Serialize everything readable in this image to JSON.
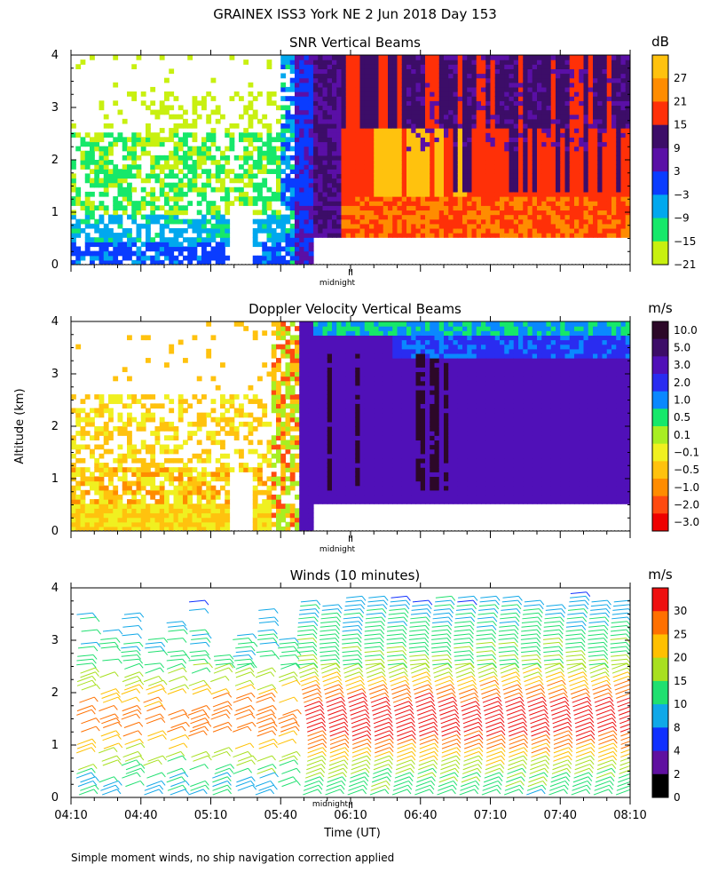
{
  "figure": {
    "title": "GRAINEX ISS3 York NE   2 Jun 2018 Day 153",
    "ylabel": "Altitude (km)",
    "xlabel": "Time (UT)",
    "footnote": "Simple moment winds, no ship navigation correction applied",
    "midnight_label": "midnight"
  },
  "chart_data": [
    {
      "type": "heatmap",
      "title": "SNR Vertical Beams",
      "units": "dB",
      "ylim": [
        0,
        4
      ],
      "yticks": [
        "0",
        "1",
        "2",
        "3",
        "4"
      ],
      "time_range": [
        "04:10",
        "08:10"
      ],
      "colorbar": {
        "labels": [
          "27",
          "21",
          "15",
          "9",
          "3",
          "−3",
          "−9",
          "−15",
          "−21"
        ],
        "colors": [
          "#ffc20e",
          "#ff8c00",
          "#ff3008",
          "#3c0d68",
          "#5a0fa6",
          "#0a3cff",
          "#00a8ee",
          "#16e86a",
          "#c8f010"
        ]
      }
    },
    {
      "type": "heatmap",
      "title": "Doppler Velocity Vertical Beams",
      "units": "m/s",
      "ylim": [
        0,
        4
      ],
      "yticks": [
        "0",
        "1",
        "2",
        "3",
        "4"
      ],
      "time_range": [
        "04:10",
        "08:10"
      ],
      "colorbar": {
        "labels": [
          "10.0",
          "5.0",
          "3.0",
          "2.0",
          "1.0",
          "0.5",
          "0.1",
          "−0.1",
          "−0.5",
          "−1.0",
          "−2.0",
          "−3.0"
        ],
        "colors": [
          "#2c0828",
          "#3c0d68",
          "#5010b8",
          "#2a2cf0",
          "#0a88ff",
          "#16e86a",
          "#a8ee22",
          "#f0f020",
          "#ffc20e",
          "#ff8c00",
          "#ff4a10",
          "#ee0000"
        ]
      }
    },
    {
      "type": "wind-barbs",
      "title": "Winds (10 minutes)",
      "units": "m/s",
      "ylim": [
        0,
        4
      ],
      "yticks": [
        "0",
        "1",
        "2",
        "3",
        "4"
      ],
      "xticks": [
        "04:10",
        "04:40",
        "05:10",
        "05:40",
        "06:10",
        "06:40",
        "07:10",
        "07:40",
        "08:10"
      ],
      "colorbar": {
        "labels": [
          "30",
          "25",
          "20",
          "15",
          "10",
          "8",
          "4",
          "2",
          "0"
        ],
        "colors": [
          "#ee1010",
          "#ff7000",
          "#ffc000",
          "#a8e020",
          "#20e070",
          "#10a8e8",
          "#1030ff",
          "#6010a0",
          "#000000"
        ]
      }
    }
  ]
}
